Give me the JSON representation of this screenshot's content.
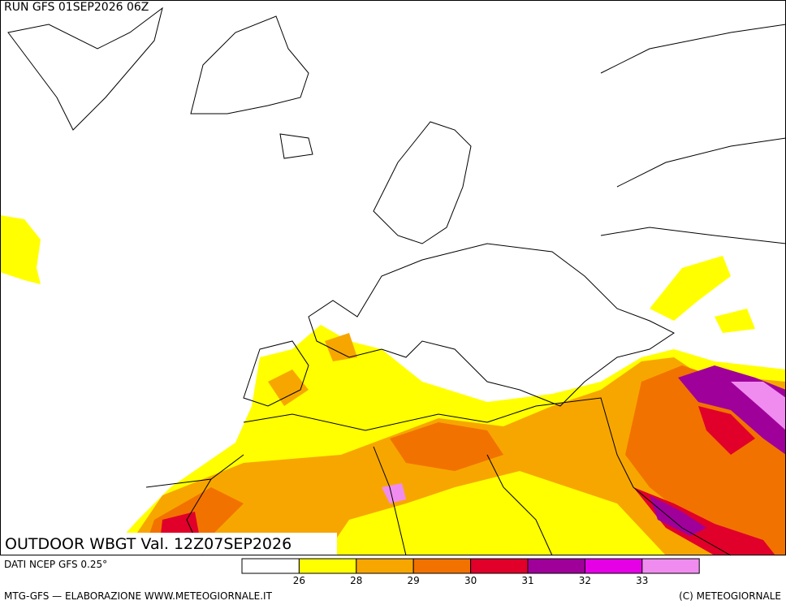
{
  "header": {
    "run": "RUN GFS 01SEP2026 06Z"
  },
  "map": {
    "title": "OUTDOOR WBGT Val. 12Z07SEP2026"
  },
  "legend": {
    "source": "DATI NCEP GFS 0.25°",
    "colors": [
      "#ffffff",
      "#ffff00",
      "#f7a600",
      "#f27200",
      "#e0002a",
      "#a0009a",
      "#e600e6",
      "#f08cf0"
    ],
    "ticks": [
      26,
      28,
      29,
      30,
      31,
      32,
      33
    ]
  },
  "footer": {
    "left": "MTG-GFS — ELABORAZIONE WWW.METEOGIORNALE.IT",
    "right": "(C) METEOGIORNALE"
  }
}
